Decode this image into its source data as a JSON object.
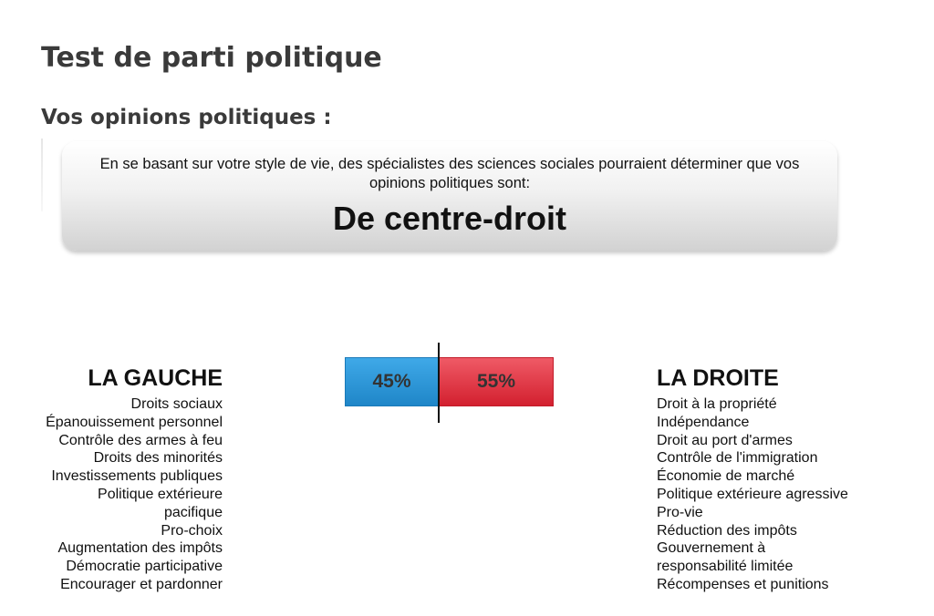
{
  "page": {
    "title": "Test de parti politique",
    "section_title": "Vos opinions politiques :"
  },
  "result": {
    "intro": "En se basant sur votre style de vie, des spécialistes des sciences sociales pourraient déterminer que vos opinions politiques sont:",
    "value": "De centre-droit"
  },
  "spectrum": {
    "left": {
      "title": "LA GAUCHE",
      "percent": 45,
      "percent_label": "45%",
      "color": "#2a98d8",
      "items": [
        "Droits sociaux",
        "Épanouissement personnel",
        "Contrôle des armes à feu",
        "Droits des minorités",
        "Investissements publiques",
        "Politique extérieure",
        "pacifique",
        "Pro-choix",
        "Augmentation des impôts",
        "Démocratie participative",
        "Encourager et pardonner"
      ]
    },
    "right": {
      "title": "LA DROITE",
      "percent": 55,
      "percent_label": "55%",
      "color": "#e03341",
      "items": [
        "Droit à la propriété",
        "Indépendance",
        "Droit au port d'armes",
        "Contrôle de l'immigration",
        "Économie de marché",
        "Politique extérieure agressive",
        "Pro-vie",
        "Réduction des impôts",
        "Gouvernement à",
        "responsabilité limitée",
        "Récompenses et punitions"
      ]
    }
  }
}
